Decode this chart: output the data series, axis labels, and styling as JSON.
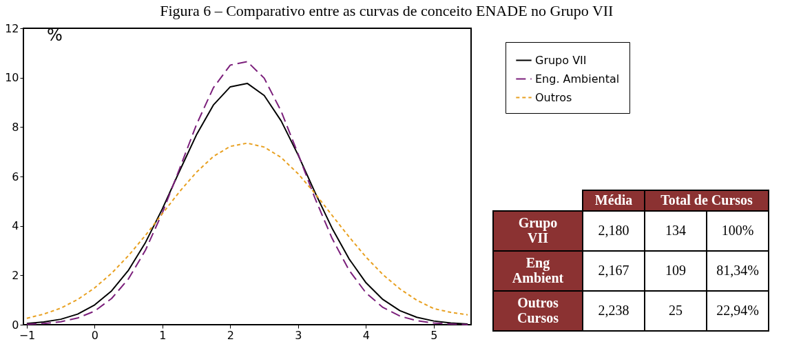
{
  "chart_data": {
    "type": "line",
    "title": "Figura 6 – Comparativo entre as curvas de conceito ENADE no Grupo VII",
    "ylabel": "%",
    "xlim": [
      -1.05,
      5.55
    ],
    "xticks": [
      -1,
      0,
      1,
      2,
      3,
      4,
      5
    ],
    "ylim": [
      0,
      12
    ],
    "yticks": [
      0,
      2,
      4,
      6,
      8,
      10,
      12
    ],
    "grid": false,
    "legend": "right",
    "marker": "none",
    "x": [
      -1,
      -0.75,
      -0.5,
      -0.25,
      0,
      0.25,
      0.5,
      0.75,
      1,
      1.25,
      1.5,
      1.75,
      2,
      2.25,
      2.5,
      2.75,
      3,
      3.25,
      3.5,
      3.75,
      4,
      4.25,
      4.5,
      4.75,
      5,
      5.25,
      5.5
    ],
    "series": [
      {
        "name": "Grupo VII",
        "color": "#000000",
        "line_style": "solid",
        "values": [
          0.05,
          0.11,
          0.22,
          0.43,
          0.8,
          1.37,
          2.21,
          3.33,
          4.7,
          6.21,
          7.68,
          8.89,
          9.63,
          9.77,
          9.28,
          8.25,
          6.87,
          5.35,
          3.91,
          2.67,
          1.7,
          1.02,
          0.57,
          0.3,
          0.15,
          0.07,
          0.03
        ]
      },
      {
        "name": "Eng. Ambiental",
        "color": "#7b1f7b",
        "line_style": "dashed",
        "values": [
          0.02,
          0.05,
          0.12,
          0.27,
          0.55,
          1.06,
          1.86,
          3.02,
          4.54,
          6.3,
          8.09,
          9.59,
          10.51,
          10.65,
          9.98,
          8.64,
          6.91,
          5.11,
          3.5,
          2.21,
          1.29,
          0.7,
          0.35,
          0.16,
          0.07,
          0.03,
          0.01
        ]
      },
      {
        "name": "Outros",
        "color": "#e8a020",
        "line_style": "dotted",
        "values": [
          0.26,
          0.43,
          0.67,
          1.02,
          1.49,
          2.08,
          2.8,
          3.62,
          4.5,
          5.38,
          6.17,
          6.81,
          7.22,
          7.35,
          7.19,
          6.77,
          6.11,
          5.31,
          4.43,
          3.56,
          2.74,
          2.03,
          1.45,
          0.99,
          0.65,
          0.5,
          0.4
        ]
      }
    ],
    "annotations": [
      "Média",
      "Total de Cursos",
      "Grupo VII",
      "2,180",
      "134",
      "100%",
      "Eng Ambient",
      "2,167",
      "109",
      "81,34%",
      "Outros Cursos",
      "2,238",
      "25",
      "22,94%"
    ]
  }
}
